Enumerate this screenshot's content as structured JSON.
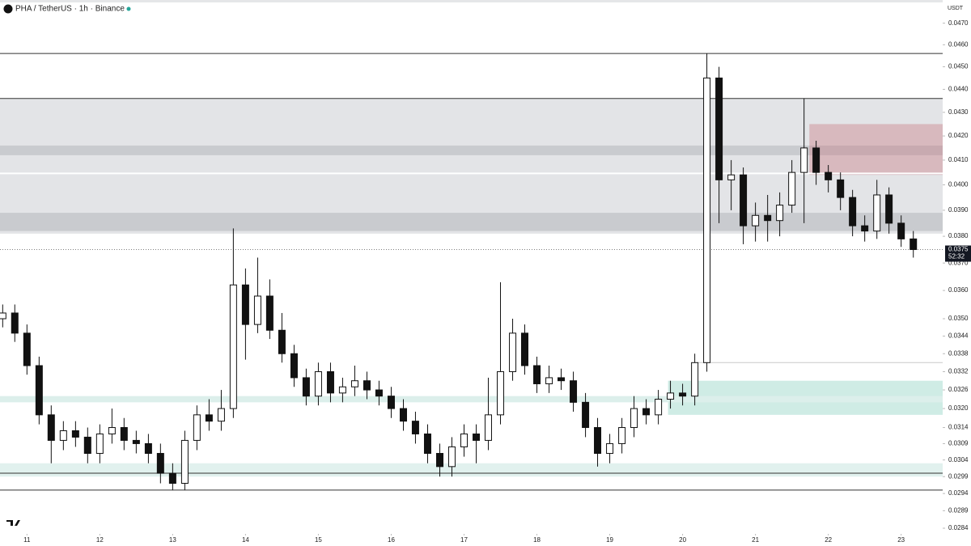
{
  "header": {
    "symbol": "PHA / TetherUS · 1h · Binance"
  },
  "chart_data": {
    "type": "candlestick",
    "y_axis_label": "USDT",
    "log_scale": true,
    "ylim": [
      0.0279,
      0.0481
    ],
    "yticks": [
      {
        "value": 0.047,
        "label": "0.0470"
      },
      {
        "value": 0.046,
        "label": "0.0460"
      },
      {
        "value": 0.045,
        "label": "0.0450"
      },
      {
        "value": 0.044,
        "label": "0.0440"
      },
      {
        "value": 0.043,
        "label": "0.0430"
      },
      {
        "value": 0.042,
        "label": "0.0420"
      },
      {
        "value": 0.041,
        "label": "0.0410"
      },
      {
        "value": 0.04,
        "label": "0.0400"
      },
      {
        "value": 0.039,
        "label": "0.0390"
      },
      {
        "value": 0.038,
        "label": "0.0380"
      },
      {
        "value": 0.037,
        "label": "0.0370"
      },
      {
        "value": 0.036,
        "label": "0.0360"
      },
      {
        "value": 0.035,
        "label": "0.0350"
      },
      0.0344,
      0.0338,
      0.0332,
      0.0326,
      {
        "value": 0.032,
        "label": "0.0320"
      },
      0.0314,
      0.0309,
      0.0304,
      0.0299,
      0.0294,
      0.0289,
      0.0284
    ],
    "xlim": [
      10.63,
      23.57
    ],
    "xticks": [
      11,
      12,
      13,
      14,
      15,
      16,
      17,
      18,
      19,
      20,
      21,
      22,
      23
    ],
    "up_color": "#ffffff",
    "down_color": "#111111",
    "x": [
      10.667,
      10.833,
      11,
      11.167,
      11.333,
      11.5,
      11.667,
      11.833,
      12,
      12.167,
      12.333,
      12.5,
      12.667,
      12.833,
      13,
      13.167,
      13.333,
      13.5,
      13.667,
      13.833,
      14,
      14.167,
      14.333,
      14.5,
      14.667,
      14.833,
      15,
      15.167,
      15.333,
      15.5,
      15.667,
      15.833,
      16,
      16.167,
      16.333,
      16.5,
      16.667,
      16.833,
      17,
      17.167,
      17.333,
      17.5,
      17.667,
      17.833,
      18,
      18.167,
      18.333,
      18.5,
      18.667,
      18.833,
      19,
      19.167,
      19.333,
      19.5,
      19.667,
      19.833,
      20,
      20.167,
      20.333,
      20.5,
      20.667,
      20.833,
      21,
      21.167,
      21.333,
      21.5,
      21.667,
      21.833,
      22,
      22.167,
      22.333,
      22.5,
      22.667,
      22.833,
      23,
      23.167
    ],
    "open": [
      0.035,
      0.0352,
      0.0345,
      0.0334,
      0.0318,
      0.031,
      0.0313,
      0.0311,
      0.0306,
      0.0312,
      0.0314,
      0.031,
      0.0309,
      0.0306,
      0.03,
      0.0297,
      0.031,
      0.0318,
      0.0316,
      0.032,
      0.0362,
      0.0348,
      0.0358,
      0.0346,
      0.0338,
      0.033,
      0.0324,
      0.0332,
      0.0325,
      0.0327,
      0.0329,
      0.0326,
      0.0324,
      0.032,
      0.0316,
      0.0312,
      0.0306,
      0.0302,
      0.0308,
      0.0312,
      0.031,
      0.0318,
      0.0332,
      0.0345,
      0.0334,
      0.0328,
      0.033,
      0.0329,
      0.0322,
      0.0314,
      0.0306,
      0.0309,
      0.0314,
      0.032,
      0.0318,
      0.0323,
      0.0325,
      0.0324,
      0.0335,
      0.0445,
      0.0402,
      0.0404,
      0.0384,
      0.0388,
      0.0386,
      0.0392,
      0.0405,
      0.0415,
      0.0405,
      0.0402,
      0.0395,
      0.0384,
      0.0382,
      0.0396,
      0.0385,
      0.0379
    ],
    "high": [
      0.0355,
      0.0355,
      0.0348,
      0.0337,
      0.0321,
      0.0316,
      0.0316,
      0.0314,
      0.0315,
      0.032,
      0.0317,
      0.0313,
      0.0312,
      0.0309,
      0.0303,
      0.0313,
      0.0321,
      0.0323,
      0.0326,
      0.0383,
      0.0368,
      0.0372,
      0.0364,
      0.0352,
      0.0341,
      0.0333,
      0.0335,
      0.0335,
      0.033,
      0.0334,
      0.0332,
      0.0329,
      0.0327,
      0.0323,
      0.0319,
      0.0315,
      0.0309,
      0.0311,
      0.0315,
      0.0315,
      0.033,
      0.0363,
      0.035,
      0.0348,
      0.0337,
      0.0334,
      0.0333,
      0.0332,
      0.0325,
      0.0317,
      0.0312,
      0.0317,
      0.0324,
      0.0323,
      0.0326,
      0.0329,
      0.0328,
      0.0338,
      0.0456,
      0.045,
      0.041,
      0.0407,
      0.0393,
      0.0396,
      0.0397,
      0.041,
      0.0436,
      0.0418,
      0.0408,
      0.0405,
      0.0398,
      0.0388,
      0.0402,
      0.0399,
      0.0388,
      0.0382
    ],
    "low": [
      0.0347,
      0.0342,
      0.0331,
      0.0315,
      0.0303,
      0.0307,
      0.0308,
      0.0303,
      0.0303,
      0.0309,
      0.0307,
      0.0306,
      0.0303,
      0.0297,
      0.0295,
      0.0295,
      0.0307,
      0.0313,
      0.0313,
      0.0317,
      0.0336,
      0.0345,
      0.0343,
      0.0335,
      0.0327,
      0.0321,
      0.0321,
      0.0322,
      0.0322,
      0.0324,
      0.0323,
      0.0321,
      0.0317,
      0.0313,
      0.0309,
      0.0303,
      0.0299,
      0.0299,
      0.0305,
      0.0303,
      0.0307,
      0.0315,
      0.0329,
      0.0331,
      0.0325,
      0.0325,
      0.0326,
      0.0319,
      0.0311,
      0.0302,
      0.0303,
      0.0306,
      0.0311,
      0.0315,
      0.0315,
      0.032,
      0.0321,
      0.0321,
      0.0332,
      0.0385,
      0.039,
      0.0377,
      0.0378,
      0.0378,
      0.038,
      0.0389,
      0.0385,
      0.04,
      0.0397,
      0.039,
      0.038,
      0.0378,
      0.0379,
      0.0381,
      0.0376,
      0.0372
    ],
    "close": [
      0.0352,
      0.0345,
      0.0334,
      0.0318,
      0.031,
      0.0313,
      0.0311,
      0.0306,
      0.0312,
      0.0314,
      0.031,
      0.0309,
      0.0306,
      0.03,
      0.0297,
      0.031,
      0.0318,
      0.0316,
      0.032,
      0.0362,
      0.0348,
      0.0358,
      0.0346,
      0.0338,
      0.033,
      0.0324,
      0.0332,
      0.0325,
      0.0327,
      0.0329,
      0.0326,
      0.0324,
      0.032,
      0.0316,
      0.0312,
      0.0306,
      0.0302,
      0.0308,
      0.0312,
      0.031,
      0.0318,
      0.0332,
      0.0345,
      0.0334,
      0.0328,
      0.033,
      0.0329,
      0.0322,
      0.0314,
      0.0306,
      0.0309,
      0.0314,
      0.032,
      0.0318,
      0.0323,
      0.0325,
      0.0324,
      0.0335,
      0.0445,
      0.0402,
      0.0404,
      0.0384,
      0.0388,
      0.0386,
      0.0392,
      0.0405,
      0.0415,
      0.0405,
      0.0402,
      0.0395,
      0.0384,
      0.0382,
      0.0396,
      0.0385,
      0.0379,
      0.0375
    ],
    "zones": [
      {
        "from": 0.0436,
        "to": 0.0381,
        "color": "#e3e4e7"
      },
      {
        "from": 0.0416,
        "to": 0.0412,
        "color": "#c9cbcf"
      },
      {
        "from": 0.0389,
        "to": 0.0382,
        "color": "#c9cbcf"
      },
      {
        "from": 0.0425,
        "to": 0.0404,
        "start": 21.74,
        "color": "rgba(200,120,130,0.4)"
      },
      {
        "from": 0.0329,
        "to": 0.0318,
        "start": 19.8,
        "color": "#cfece5"
      },
      {
        "from": 0.0324,
        "to": 0.0322,
        "color": "#dcefeb"
      },
      {
        "from": 0.0303,
        "to": 0.0299,
        "color": "#e1f1ee"
      }
    ],
    "levels": [
      {
        "value": 0.0456,
        "color": "#333333"
      },
      {
        "value": 0.0436,
        "color": "#333333"
      },
      {
        "value": 0.04046,
        "color": "#ffffff"
      },
      {
        "value": 0.0335,
        "start": 20.2,
        "color": "#c8c8c8"
      },
      {
        "value": 0.03,
        "color": "#333333"
      },
      {
        "value": 0.0295,
        "color": "#333333"
      }
    ],
    "last_price": 0.0375,
    "countdown": "52:32"
  }
}
